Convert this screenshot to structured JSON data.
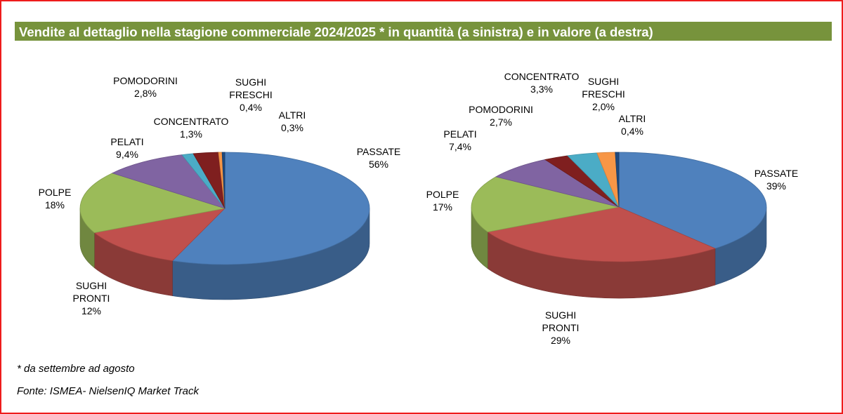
{
  "title": "Vendite al dettaglio nella stagione commerciale 2024/2025 * in quantità (a sinistra) e in valore (a destra)",
  "footnote": "* da settembre ad agosto",
  "source": "Fonte: ISMEA- NielsenIQ Market Track",
  "colors": {
    "title_bar": "#77933c",
    "frame_border": "#ee1c1c",
    "PASSATE": "#4f81bd",
    "SUGHI PRONTI": "#c0504d",
    "POLPE": "#9bbb59",
    "PELATI": "#8064a2",
    "CONCENTRATO": "#4bacc6",
    "SUGHI FRESCHI": "#f79646",
    "ALTRI": "#1f497d",
    "POMODORINI": "#7f1f1f"
  },
  "chart_data": [
    {
      "type": "pie",
      "style": "3d",
      "slices": [
        {
          "label": "PASSATE",
          "label_lines": [
            "PASSATE"
          ],
          "pct_text": "56%",
          "value": 56
        },
        {
          "label": "SUGHI PRONTI",
          "label_lines": [
            "SUGHI",
            "PRONTI"
          ],
          "pct_text": "12%",
          "value": 12
        },
        {
          "label": "POLPE",
          "label_lines": [
            "POLPE"
          ],
          "pct_text": "18%",
          "value": 18
        },
        {
          "label": "PELATI",
          "label_lines": [
            "PELATI"
          ],
          "pct_text": "9,4%",
          "value": 9.4
        },
        {
          "label": "CONCENTRATO",
          "label_lines": [
            "CONCENTRATO"
          ],
          "pct_text": "1,3%",
          "value": 1.3
        },
        {
          "label": "POMODORINI",
          "label_lines": [
            "POMODORINI"
          ],
          "pct_text": "2,8%",
          "value": 2.8
        },
        {
          "label": "SUGHI FRESCHI",
          "label_lines": [
            "SUGHI",
            "FRESCHI"
          ],
          "pct_text": "0,4%",
          "value": 0.4
        },
        {
          "label": "ALTRI",
          "label_lines": [
            "ALTRI"
          ],
          "pct_text": "0,3%",
          "value": 0.3
        }
      ]
    },
    {
      "type": "pie",
      "style": "3d",
      "slices": [
        {
          "label": "PASSATE",
          "label_lines": [
            "PASSATE"
          ],
          "pct_text": "39%",
          "value": 39
        },
        {
          "label": "SUGHI PRONTI",
          "label_lines": [
            "SUGHI",
            "PRONTI"
          ],
          "pct_text": "29%",
          "value": 29
        },
        {
          "label": "POLPE",
          "label_lines": [
            "POLPE"
          ],
          "pct_text": "17%",
          "value": 17
        },
        {
          "label": "PELATI",
          "label_lines": [
            "PELATI"
          ],
          "pct_text": "7,4%",
          "value": 7.4
        },
        {
          "label": "POMODORINI",
          "label_lines": [
            "POMODORINI"
          ],
          "pct_text": "2,7%",
          "value": 2.7
        },
        {
          "label": "CONCENTRATO",
          "label_lines": [
            "CONCENTRATO"
          ],
          "pct_text": "3,3%",
          "value": 3.3
        },
        {
          "label": "SUGHI FRESCHI",
          "label_lines": [
            "SUGHI",
            "FRESCHI"
          ],
          "pct_text": "2,0%",
          "value": 2.0
        },
        {
          "label": "ALTRI",
          "label_lines": [
            "ALTRI"
          ],
          "pct_text": "0,4%",
          "value": 0.4
        }
      ]
    }
  ]
}
